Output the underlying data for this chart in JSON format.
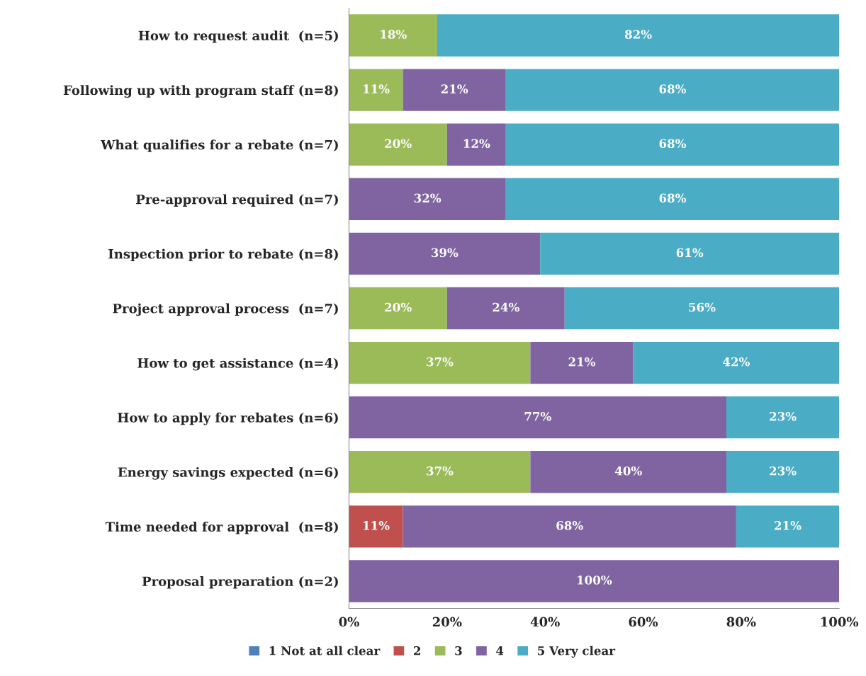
{
  "chart_data": {
    "type": "bar",
    "orientation": "horizontal",
    "stacked": true,
    "categories": [
      "How to request audit  (n=5)",
      "Following up with program staff (n=8)",
      "What qualifies for a rebate (n=7)",
      "Pre-approval required (n=7)",
      "Inspection prior to rebate (n=8)",
      "Project approval process  (n=7)",
      "How to get assistance (n=4)",
      "How to apply for rebates (n=6)",
      "Energy savings expected (n=6)",
      "Time needed for approval  (n=8)",
      "Proposal preparation (n=2)"
    ],
    "series": [
      {
        "name": "1 Not at all clear",
        "color": "#4f81bd",
        "values": [
          null,
          null,
          null,
          null,
          null,
          null,
          null,
          null,
          null,
          null,
          null
        ],
        "value_labels": [
          null,
          null,
          null,
          null,
          null,
          null,
          null,
          null,
          null,
          null,
          null
        ]
      },
      {
        "name": "2",
        "color": "#c0504d",
        "values": [
          null,
          null,
          null,
          null,
          null,
          null,
          null,
          null,
          null,
          11,
          null
        ],
        "value_labels": [
          null,
          null,
          null,
          null,
          null,
          null,
          null,
          null,
          null,
          "11%",
          null
        ]
      },
      {
        "name": "3",
        "color": "#9bbb59",
        "values": [
          18,
          11,
          20,
          null,
          null,
          20,
          37,
          null,
          37,
          null,
          null
        ],
        "value_labels": [
          "18%",
          "11%",
          "20%",
          null,
          null,
          "20%",
          "37%",
          null,
          "37%",
          null,
          null
        ]
      },
      {
        "name": "4",
        "color": "#8064a2",
        "values": [
          null,
          21,
          12,
          32,
          39,
          24,
          21,
          77,
          40,
          68,
          100
        ],
        "value_labels": [
          null,
          "21%",
          "12%",
          "32%",
          "39%",
          "24%",
          "21%",
          "77%",
          "40%",
          "68%",
          "100%"
        ]
      },
      {
        "name": "5 Very clear",
        "color": "#4bacc6",
        "values": [
          82,
          68,
          68,
          68,
          61,
          56,
          42,
          23,
          23,
          21,
          null
        ],
        "value_labels": [
          "82%",
          "68%",
          "68%",
          "68%",
          "61%",
          "56%",
          "42%",
          "23%",
          "23%",
          "21%",
          null
        ]
      }
    ],
    "xlim": [
      0,
      100
    ],
    "xticks": [
      {
        "value": 0,
        "label": "0%"
      },
      {
        "value": 20,
        "label": "20%"
      },
      {
        "value": 40,
        "label": "40%"
      },
      {
        "value": 60,
        "label": "60%"
      },
      {
        "value": 80,
        "label": "80%"
      },
      {
        "value": 100,
        "label": "100%"
      }
    ],
    "grid": false,
    "legend": "bottom"
  }
}
